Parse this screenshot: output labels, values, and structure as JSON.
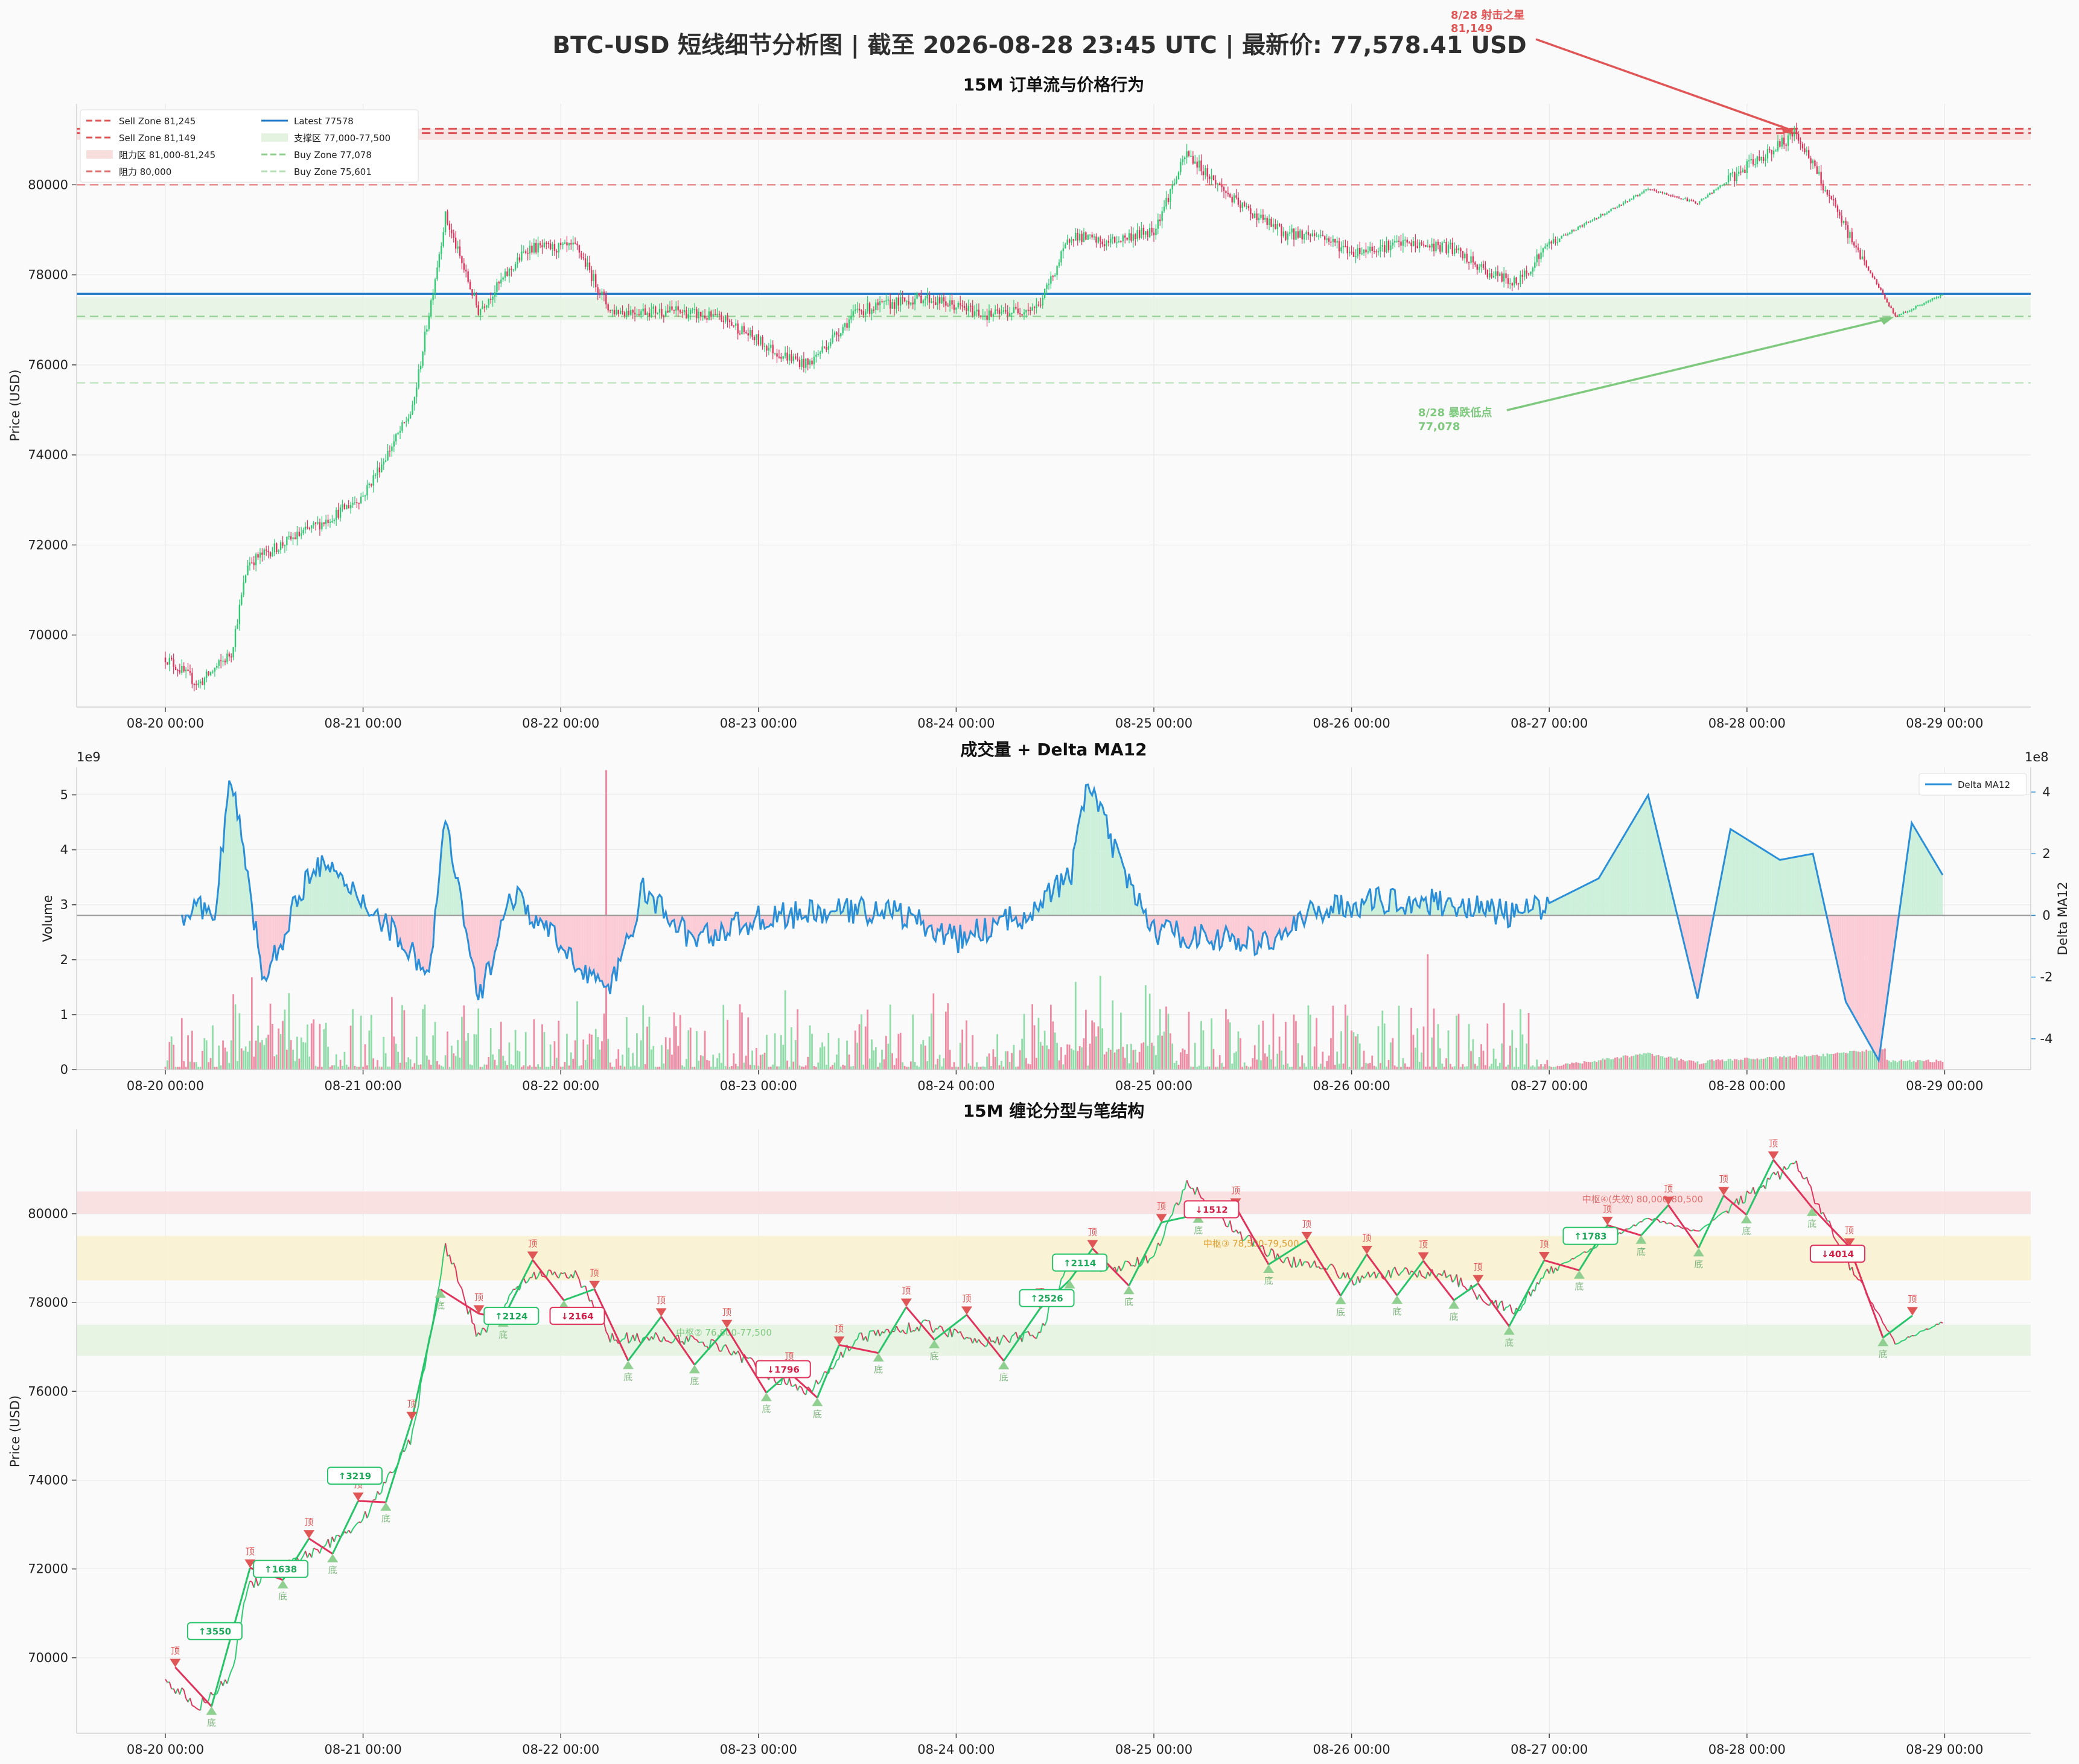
{
  "title": "BTC-USD 短线细节分析图 | 截至 2026-08-28 23:45 UTC | 最新价: 77,578.41 USD",
  "colors": {
    "up": "#2ecc71",
    "down": "#e0325a",
    "sell": "#e05555",
    "buy": "#7fc97f",
    "latest": "#1f78c8",
    "delta": "#2a8fd8",
    "mid": "#f4e7a6"
  },
  "x_ticks": [
    "08-20 00:00",
    "08-21 00:00",
    "08-22 00:00",
    "08-23 00:00",
    "08-24 00:00",
    "08-25 00:00",
    "08-26 00:00",
    "08-27 00:00",
    "08-28 00:00",
    "08-29 00:00"
  ],
  "chart_data": [
    {
      "type": "candlestick",
      "title": "15M 订单流与价格行为",
      "ylabel": "Price (USD)",
      "ylim": [
        68400,
        81800
      ],
      "y_ticks": [
        "70000",
        "72000",
        "74000",
        "76000",
        "78000",
        "80000"
      ],
      "x_ticks": [
        "08-20 00:00",
        "08-21 00:00",
        "08-22 00:00",
        "08-23 00:00",
        "08-24 00:00",
        "08-25 00:00",
        "08-26 00:00",
        "08-27 00:00",
        "08-28 00:00",
        "08-29 00:00"
      ],
      "price_path": [
        [
          "08-20 00:00",
          69500
        ],
        [
          "08-20 04:00",
          68900
        ],
        [
          "08-20 08:00",
          69600
        ],
        [
          "08-20 10:00",
          71600
        ],
        [
          "08-20 14:00",
          72000
        ],
        [
          "08-20 20:00",
          72600
        ],
        [
          "08-21 00:00",
          73100
        ],
        [
          "08-21 06:00",
          75000
        ],
        [
          "08-21 10:00",
          79300
        ],
        [
          "08-21 14:00",
          77200
        ],
        [
          "08-21 20:00",
          78600
        ],
        [
          "08-22 02:00",
          78600
        ],
        [
          "08-22 06:00",
          77200
        ],
        [
          "08-22 14:00",
          77200
        ],
        [
          "08-22 20:00",
          77000
        ],
        [
          "08-23 02:00",
          76300
        ],
        [
          "08-23 06:00",
          76000
        ],
        [
          "08-23 12:00",
          77200
        ],
        [
          "08-23 20:00",
          77500
        ],
        [
          "08-24 04:00",
          77100
        ],
        [
          "08-24 10:00",
          77300
        ],
        [
          "08-24 14:00",
          78900
        ],
        [
          "08-24 18:00",
          78700
        ],
        [
          "08-25 00:00",
          79000
        ],
        [
          "08-25 04:00",
          80700
        ],
        [
          "08-25 10:00",
          79600
        ],
        [
          "08-25 16:00",
          78900
        ],
        [
          "08-25 20:00",
          78900
        ],
        [
          "08-26 00:00",
          78500
        ],
        [
          "08-26 06:00",
          78700
        ],
        [
          "08-26 12:00",
          78600
        ],
        [
          "08-26 16:00",
          78100
        ],
        [
          "08-26 20:00",
          77800
        ],
        [
          "08-27 00:00",
          78700
        ],
        [
          "08-27 12:00",
          79900
        ],
        [
          "08-27 18:00",
          79600
        ],
        [
          "08-28 00:00",
          80400
        ],
        [
          "08-28 06:00",
          81149
        ],
        [
          "08-28 12:00",
          79000
        ],
        [
          "08-28 18:00",
          77078
        ],
        [
          "08-29 00:00",
          77578
        ]
      ],
      "lines": [
        {
          "name": "Sell Zone 81,245",
          "y": 81245,
          "style": "dashed"
        },
        {
          "name": "Sell Zone 81,149",
          "y": 81149,
          "style": "dashed"
        },
        {
          "name": "阻力区 81,000-81,245",
          "range": [
            81000,
            81245
          ]
        },
        {
          "name": "阻力 80,000",
          "y": 80000,
          "style": "dashed"
        },
        {
          "name": "Latest 77578",
          "y": 77578,
          "style": "solid"
        },
        {
          "name": "支撑区 77,000-77,500",
          "range": [
            77000,
            77500
          ]
        },
        {
          "name": "Buy Zone 77,078",
          "y": 77078,
          "style": "dashed"
        },
        {
          "name": "Buy Zone 75,601",
          "y": 75601,
          "style": "dashed"
        }
      ],
      "annotations": [
        {
          "text": "8/28 射击之星",
          "value": "81,149",
          "x": "08-28 06:00",
          "y": 81149
        },
        {
          "text": "8/28 暴跌低点",
          "value": "77,078",
          "x": "08-28 18:00",
          "y": 77078
        }
      ]
    },
    {
      "type": "bar+line",
      "title": "成交量 + Delta MA12",
      "ylabel": "Volume",
      "y2label": "Delta MA12",
      "y_exponent": "1e9",
      "y2_exponent": "1e8",
      "ylim": [
        0,
        5.5
      ],
      "y2lim": [
        -5,
        4.8
      ],
      "y_ticks": [
        "0",
        "1",
        "2",
        "3",
        "4",
        "5"
      ],
      "y2_ticks": [
        "-4",
        "-2",
        "0",
        "2",
        "4"
      ],
      "legend": "Delta MA12",
      "delta_path": [
        [
          "08-20 02:00",
          0
        ],
        [
          "08-20 06:00",
          0.3
        ],
        [
          "08-20 08:00",
          4.5
        ],
        [
          "08-20 12:00",
          -2.2
        ],
        [
          "08-20 18:00",
          1.8
        ],
        [
          "08-21 00:00",
          0.5
        ],
        [
          "08-21 06:00",
          -1.2
        ],
        [
          "08-21 08:00",
          -2
        ],
        [
          "08-21 10:00",
          3.1
        ],
        [
          "08-21 14:00",
          -2.8
        ],
        [
          "08-21 18:00",
          0.7
        ],
        [
          "08-22 00:00",
          -1
        ],
        [
          "08-22 06:00",
          -2.5
        ],
        [
          "08-22 10:00",
          0.8
        ],
        [
          "08-22 16:00",
          -0.8
        ],
        [
          "08-23 00:00",
          -0.1
        ],
        [
          "08-23 08:00",
          0.1
        ],
        [
          "08-23 16:00",
          0.2
        ],
        [
          "08-24 00:00",
          -0.8
        ],
        [
          "08-24 08:00",
          0
        ],
        [
          "08-24 14:00",
          1.3
        ],
        [
          "08-24 16:00",
          4.5
        ],
        [
          "08-24 20:00",
          1.5
        ],
        [
          "08-25 00:00",
          -0.5
        ],
        [
          "08-25 06:00",
          -0.7
        ],
        [
          "08-25 14:00",
          -0.9
        ],
        [
          "08-25 20:00",
          0.2
        ],
        [
          "08-26 04:00",
          0.5
        ],
        [
          "08-26 12:00",
          0.4
        ],
        [
          "08-26 20:00",
          0
        ],
        [
          "08-27 00:00",
          0.4
        ],
        [
          "08-27 06:00",
          1.2
        ],
        [
          "08-27 12:00",
          3.9
        ],
        [
          "08-27 18:00",
          -2.7
        ],
        [
          "08-27 22:00",
          2.8
        ],
        [
          "08-28 04:00",
          1.8
        ],
        [
          "08-28 08:00",
          2
        ],
        [
          "08-28 12:00",
          -2.8
        ],
        [
          "08-28 16:00",
          -4.7
        ],
        [
          "08-28 20:00",
          3
        ],
        [
          "08-29 00:00",
          1.2
        ]
      ]
    },
    {
      "type": "line",
      "title": "15M 缠论分型与笔结构",
      "ylabel": "Price (USD)",
      "ylim": [
        68300,
        81900
      ],
      "y_ticks": [
        "70000",
        "72000",
        "74000",
        "76000",
        "78000",
        "80000"
      ],
      "x_ticks": [
        "08-20 00:00",
        "08-21 00:00",
        "08-22 00:00",
        "08-23 00:00",
        "08-24 00:00",
        "08-25 00:00",
        "08-26 00:00",
        "08-27 00:00",
        "08-28 00:00",
        "08-29 00:00"
      ],
      "zones": [
        {
          "range": [
            80000,
            80500
          ],
          "label": "中枢④(失效) 80,000-80,500"
        },
        {
          "range": [
            78500,
            79500
          ],
          "label": "中枢③ 78,500-79,500"
        },
        {
          "range": [
            76800,
            77500
          ],
          "label": "中枢② 76,800-77,500"
        }
      ],
      "strokes": [
        {
          "label": "↑3550",
          "x": "08-20 06:00",
          "y": 70600
        },
        {
          "label": "↑1638",
          "x": "08-20 14:00",
          "y": 72000
        },
        {
          "label": "↑3219",
          "x": "08-20 23:00",
          "y": 74100
        },
        {
          "label": "↑2124",
          "x": "08-21 18:00",
          "y": 77700
        },
        {
          "label": "↓2164",
          "x": "08-22 02:00",
          "y": 77700
        },
        {
          "label": "↓1796",
          "x": "08-23 03:00",
          "y": 76500
        },
        {
          "label": "↑2526",
          "x": "08-24 11:00",
          "y": 78100
        },
        {
          "label": "↑2114",
          "x": "08-24 15:00",
          "y": 78900
        },
        {
          "label": "↓1512",
          "x": "08-25 07:00",
          "y": 80100
        },
        {
          "label": "↑1783",
          "x": "08-27 05:00",
          "y": 79500
        },
        {
          "label": "↓4014",
          "x": "08-28 11:00",
          "y": 79100
        }
      ],
      "fractal_top_label": "顶",
      "fractal_bottom_label": "底"
    }
  ]
}
